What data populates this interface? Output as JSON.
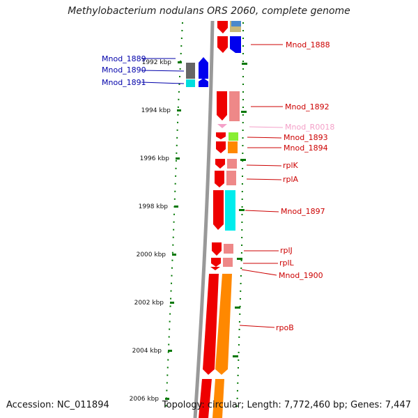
{
  "title": "Methylobacterium nodulans ORS 2060, complete genome",
  "accession": "Accession: NC_011894",
  "topology": "Topology: circular; Length: 7,772,460 bp; Genes: 7,447",
  "kbp_ticks": [
    "1992 kbp",
    "1994 kbp",
    "1996 kbp",
    "1998 kbp",
    "2000 kbp",
    "2002 kbp",
    "2004 kbp",
    "2006 kbp"
  ],
  "gene_labels": [
    {
      "name": "gene-label-mnod-1888",
      "text": "Mnod_1888",
      "color": "#cc0000"
    },
    {
      "name": "gene-label-mnod-1889",
      "text": "Mnod_1889",
      "color": "#0000aa"
    },
    {
      "name": "gene-label-mnod-1890",
      "text": "Mnod_1890",
      "color": "#0000aa"
    },
    {
      "name": "gene-label-mnod-1891",
      "text": "Mnod_1891",
      "color": "#0000aa"
    },
    {
      "name": "gene-label-mnod-1892",
      "text": "Mnod_1892",
      "color": "#cc0000"
    },
    {
      "name": "gene-label-mnod-r0018",
      "text": "Mnod_R0018",
      "color": "#f4a0c8"
    },
    {
      "name": "gene-label-mnod-1893",
      "text": "Mnod_1893",
      "color": "#cc0000"
    },
    {
      "name": "gene-label-mnod-1894",
      "text": "Mnod_1894",
      "color": "#cc0000"
    },
    {
      "name": "gene-label-rplk",
      "text": "rplK",
      "color": "#cc0000"
    },
    {
      "name": "gene-label-rpla",
      "text": "rplA",
      "color": "#cc0000"
    },
    {
      "name": "gene-label-mnod-1897",
      "text": "Mnod_1897",
      "color": "#cc0000"
    },
    {
      "name": "gene-label-rplj",
      "text": "rplJ",
      "color": "#cc0000"
    },
    {
      "name": "gene-label-rpll",
      "text": "rplL",
      "color": "#cc0000"
    },
    {
      "name": "gene-label-mnod-1900",
      "text": "Mnod_1900",
      "color": "#cc0000"
    },
    {
      "name": "gene-label-rpob",
      "text": "rpoB",
      "color": "#cc0000"
    }
  ],
  "colors": {
    "forward_strand": "#ee0000",
    "reverse_strand": "#0000ee",
    "backbone": "#888888",
    "gc_skew_dots": "#007700"
  }
}
